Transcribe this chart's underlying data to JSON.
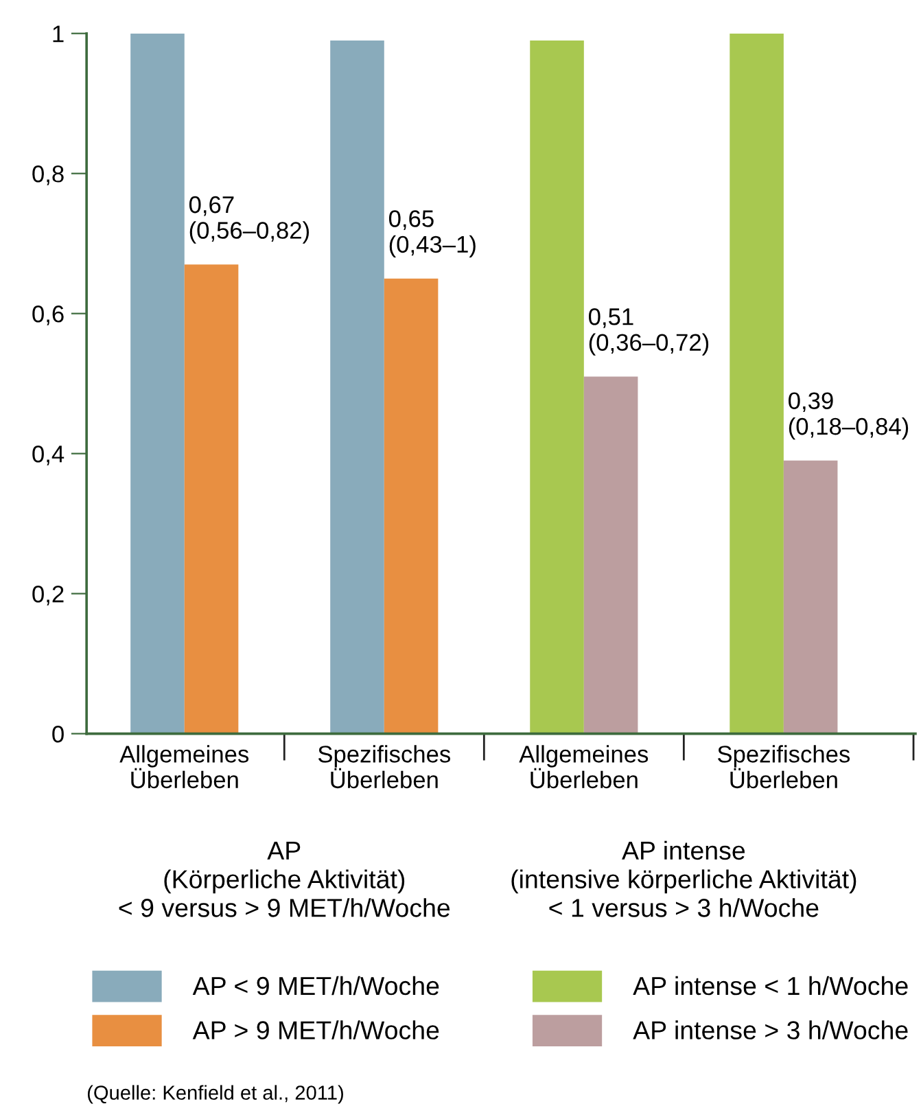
{
  "chart_data": {
    "type": "bar",
    "categories": [
      "Allgemeines\nÜberleben",
      "Spezifisches\nÜberleben",
      "Allgemeines\nÜberleben",
      "Spezifisches\nÜberleben"
    ],
    "series": [
      {
        "name": "AP < 9 MET/h/Woche",
        "color": "#89abbb",
        "values": [
          1.0,
          0.99,
          null,
          null
        ]
      },
      {
        "name": "AP > 9 MET/h/Woche",
        "color": "#e88f41",
        "values": [
          0.67,
          0.65,
          null,
          null
        ],
        "value_labels": [
          "0,67\n(0,56–0,82)",
          "0,65\n(0,43–1)",
          null,
          null
        ]
      },
      {
        "name": "AP intense < 1 h/Woche",
        "color": "#a8c850",
        "values": [
          null,
          null,
          0.99,
          1.0
        ]
      },
      {
        "name": "AP intense > 3 h/Woche",
        "color": "#bc9e9f",
        "values": [
          null,
          null,
          0.51,
          0.39
        ],
        "value_labels": [
          null,
          null,
          "0,51\n(0,36–0,72)",
          "0,39\n(0,18–0,84)"
        ]
      }
    ],
    "ylim": [
      0,
      1
    ],
    "yticks": [
      0,
      {
        "value": 0.2,
        "label": "0,2"
      },
      {
        "value": 0.4,
        "label": "0,4"
      },
      {
        "value": 0.6,
        "label": "0,6"
      },
      {
        "value": 0.8,
        "label": "0,8"
      },
      1
    ],
    "grid": false,
    "legend": "bottom",
    "annotations": [
      "AP\n(Körperliche Aktivität)\n< 9 versus > 9 MET/h/Woche",
      "AP intense\n(intensive körperliche Aktivität)\n< 1 versus > 3 h/Woche",
      "(Quelle: Kenfield et al., 2011)"
    ]
  }
}
